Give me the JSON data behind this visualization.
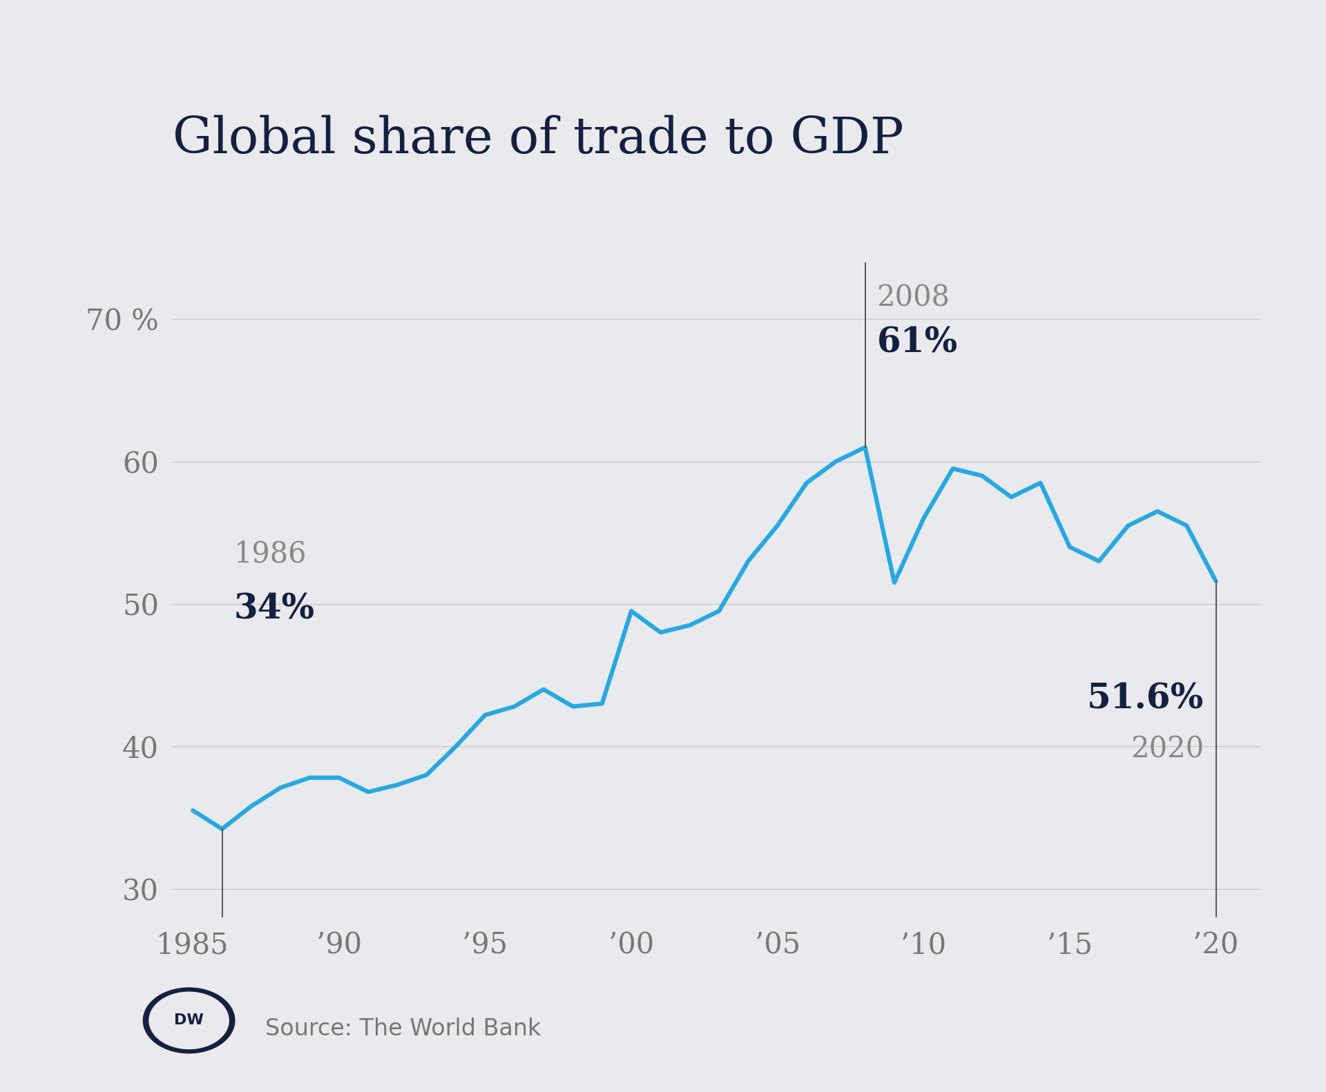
{
  "title": "Global share of trade to GDP",
  "background_color": "#e8eaed",
  "line_color": "#29a8e0",
  "line_width": 4.5,
  "years": [
    1985,
    1986,
    1987,
    1988,
    1989,
    1990,
    1991,
    1992,
    1993,
    1994,
    1995,
    1996,
    1997,
    1998,
    1999,
    2000,
    2001,
    2002,
    2003,
    2004,
    2005,
    2006,
    2007,
    2008,
    2009,
    2010,
    2011,
    2012,
    2013,
    2014,
    2015,
    2016,
    2017,
    2018,
    2019,
    2020
  ],
  "values": [
    35.5,
    34.2,
    35.8,
    37.1,
    37.8,
    37.8,
    36.8,
    37.3,
    38.0,
    40.0,
    42.2,
    42.8,
    44.0,
    42.8,
    43.0,
    49.5,
    48.0,
    48.5,
    49.5,
    53.0,
    55.5,
    58.5,
    60.0,
    61.0,
    51.5,
    56.0,
    59.5,
    59.0,
    57.5,
    58.5,
    54.0,
    53.0,
    55.5,
    56.5,
    55.5,
    51.6
  ],
  "yticks": [
    30,
    40,
    50,
    60,
    70
  ],
  "ytick_labels": [
    "30",
    "40",
    "50",
    "60",
    "70 %"
  ],
  "xtick_years": [
    1985,
    1990,
    1995,
    2000,
    2005,
    2010,
    2015,
    2020
  ],
  "xtick_labels": [
    "1985",
    "’90",
    "’95",
    "’00",
    "’05",
    "’10",
    "’15",
    "’20"
  ],
  "ylim": [
    28,
    74
  ],
  "xlim": [
    1984.3,
    2021.5
  ],
  "annotation_1986_year": 1986,
  "annotation_1986_value": 34.2,
  "annotation_1986_label_year": "1986",
  "annotation_1986_label_pct": "34%",
  "annotation_2008_year": 2008,
  "annotation_2008_value": 61.0,
  "annotation_2008_label_year": "2008",
  "annotation_2008_label_pct": "61%",
  "annotation_2020_year": 2020,
  "annotation_2020_value": 51.6,
  "annotation_2020_label_year": "2020",
  "annotation_2020_label_pct": "51.6%",
  "grid_color": "#c8cacf",
  "axis_label_color": "#777777",
  "annotation_year_color": "#888888",
  "annotation_pct_color": "#152040",
  "title_color": "#152040",
  "title_fontsize": 52,
  "tick_fontsize": 30,
  "annotation_year_fontsize": 30,
  "annotation_pct_fontsize": 36,
  "source_text": "Source: The World Bank",
  "source_fontsize": 24
}
